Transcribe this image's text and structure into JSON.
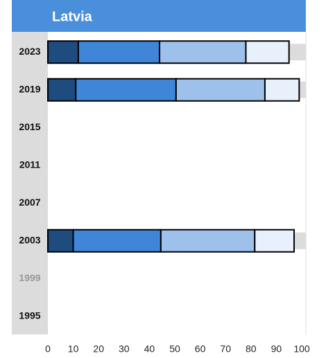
{
  "chart_data": {
    "type": "stacked-bar-horizontal",
    "title": "Latvia",
    "categories": [
      "2023",
      "2019",
      "2015",
      "2011",
      "2007",
      "2003",
      "1999",
      "1995"
    ],
    "category_label_colors": [
      "#111111",
      "#111111",
      "#111111",
      "#111111",
      "#111111",
      "#111111",
      "#999999",
      "#111111"
    ],
    "series": [
      {
        "color": "#1f4c7f",
        "values": [
          12,
          11,
          null,
          null,
          null,
          10,
          null,
          null
        ]
      },
      {
        "color": "#3f86d8",
        "values": [
          32,
          39.5,
          null,
          null,
          null,
          34.5,
          null,
          null
        ]
      },
      {
        "color": "#9dc1ea",
        "values": [
          34,
          35,
          null,
          null,
          null,
          37,
          null,
          null
        ]
      },
      {
        "color": "#e8f0fb",
        "values": [
          17,
          13.5,
          null,
          null,
          null,
          15.5,
          null,
          null
        ]
      }
    ],
    "xlim": [
      0,
      100
    ],
    "xticks": [
      0,
      10,
      20,
      30,
      40,
      50,
      60,
      70,
      80,
      90,
      100
    ]
  }
}
